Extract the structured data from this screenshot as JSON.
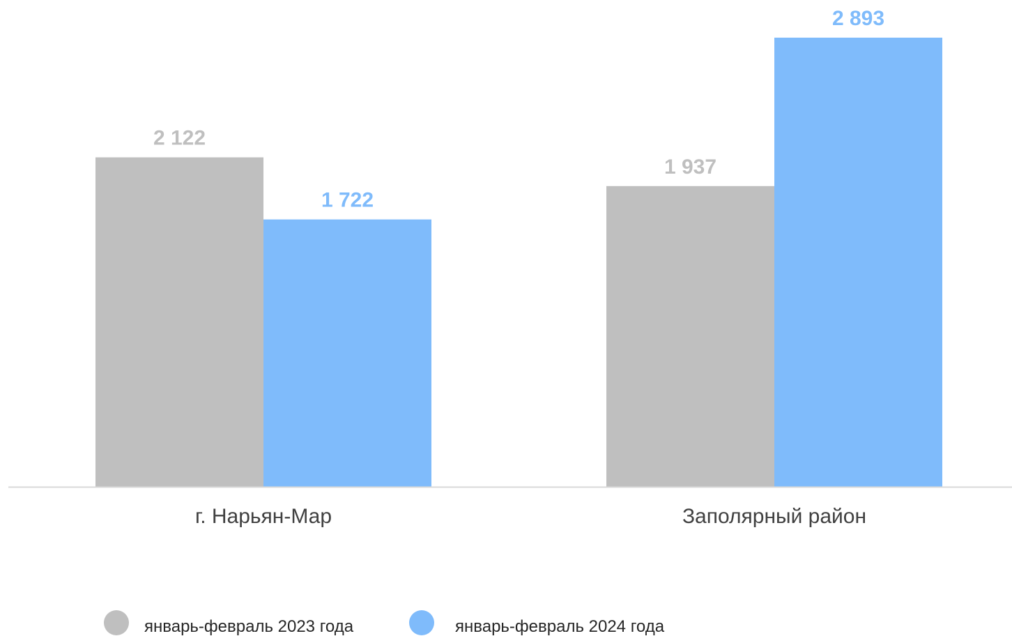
{
  "chart_data": {
    "type": "bar",
    "categories": [
      "г. Нарьян-Мар",
      "Заполярный район"
    ],
    "series": [
      {
        "name": "январь-февраль 2023 года",
        "color": "#bfbfbf",
        "values": [
          2122,
          1937
        ],
        "labels": [
          "2 122",
          "1 937"
        ]
      },
      {
        "name": "январь-февраль 2024 года",
        "color": "#7fbbfb",
        "values": [
          1722,
          2893
        ],
        "labels": [
          "1 722",
          "2 893"
        ]
      }
    ],
    "title": "",
    "xlabel": "",
    "ylabel": "",
    "ylim": [
      0,
      2893
    ],
    "grid": false,
    "legend": "bottom",
    "axis_color": "#d9d9d9"
  }
}
